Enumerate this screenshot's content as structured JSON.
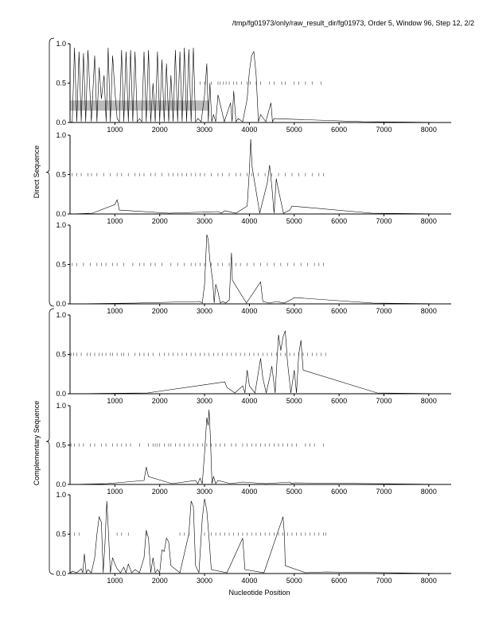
{
  "header": {
    "title": "/tmp/fg01973/only/raw_result_dir/fg01973, Order 5, Window 96, Step 12, 2/2"
  },
  "colors": {
    "trace": "#000000",
    "marker": "#555555",
    "highlight": "#bbbbbb",
    "axis": "#000000"
  },
  "chart_data": {
    "type": "line",
    "xlabel": "Nucleotide Position",
    "xlim": [
      0,
      8500
    ],
    "ylim": [
      0,
      1
    ],
    "x_ticks": [
      "1000",
      "2000",
      "3000",
      "4000",
      "5000",
      "6000",
      "7000",
      "8000"
    ],
    "y_ticks": [
      "0.0",
      "0.5",
      "1.0"
    ],
    "group_labels": [
      "Direct Sequence",
      "Complementary Sequence"
    ],
    "panels": [
      {
        "highlight_region": [
          0,
          3100
        ],
        "highlight_y": [
          0.15,
          0.28
        ],
        "stop_markers": [
          2900,
          3000,
          3150,
          3300,
          3350,
          3420,
          3480,
          3550,
          3650,
          3720,
          3820,
          3950,
          4020,
          4150,
          4250,
          4450,
          4550,
          4720,
          4800,
          5000,
          5100,
          5250,
          5400,
          5600
        ],
        "peaks": [
          [
            100,
            0.95
          ],
          [
            200,
            0.9
          ],
          [
            300,
            0.88
          ],
          [
            400,
            0.92
          ],
          [
            550,
            0.85
          ],
          [
            650,
            0.7
          ],
          [
            700,
            0.3
          ],
          [
            760,
            0.6
          ],
          [
            850,
            0.95
          ],
          [
            950,
            0.85
          ],
          [
            1000,
            0.4
          ],
          [
            1050,
            0.05
          ],
          [
            1150,
            0.92
          ],
          [
            1250,
            0.9
          ],
          [
            1350,
            0.92
          ],
          [
            1450,
            0.9
          ],
          [
            1550,
            0.05
          ],
          [
            1650,
            0.9
          ],
          [
            1750,
            0.92
          ],
          [
            1850,
            0.5
          ],
          [
            1950,
            0.9
          ],
          [
            2050,
            0.8
          ],
          [
            2150,
            0.75
          ],
          [
            2250,
            0.6
          ],
          [
            2350,
            0.92
          ],
          [
            2450,
            0.9
          ],
          [
            2550,
            0.95
          ],
          [
            2650,
            0.93
          ],
          [
            2750,
            0.95
          ],
          [
            2850,
            0.05
          ],
          [
            3000,
            0.35
          ],
          [
            3050,
            0.75
          ],
          [
            3120,
            0.5
          ],
          [
            3200,
            0.1
          ],
          [
            3300,
            0.35
          ],
          [
            3580,
            0.25
          ],
          [
            3650,
            0.4
          ],
          [
            3750,
            0.05
          ],
          [
            3950,
            0.3
          ],
          [
            4000,
            0.65
          ],
          [
            4050,
            0.85
          ],
          [
            4100,
            0.9
          ],
          [
            4150,
            0.6
          ],
          [
            4250,
            0.1
          ],
          [
            4480,
            0.25
          ],
          [
            4550,
            0.05
          ]
        ]
      },
      {
        "stop_markers": [
          50,
          150,
          250,
          400,
          480,
          600,
          750,
          900,
          1050,
          1150,
          1300,
          1450,
          1550,
          1650,
          1800,
          1900,
          2050,
          2200,
          2300,
          2400,
          2500,
          2600,
          2700,
          2800,
          2900,
          3000,
          3150,
          3300,
          3400,
          3550,
          3700,
          3800,
          3950,
          4050,
          4200,
          4350,
          4500,
          4650,
          4800,
          4950,
          5100,
          5250,
          5400,
          5550,
          5650
        ],
        "peaks": [
          [
            1000,
            0.12
          ],
          [
            1050,
            0.18
          ],
          [
            1100,
            0.05
          ],
          [
            3300,
            0.03
          ],
          [
            3450,
            0.04
          ],
          [
            3950,
            0.1
          ],
          [
            4000,
            0.55
          ],
          [
            4030,
            0.95
          ],
          [
            4060,
            0.6
          ],
          [
            4400,
            0.4
          ],
          [
            4450,
            0.62
          ],
          [
            4500,
            0.35
          ],
          [
            4600,
            0.45
          ],
          [
            4620,
            0.38
          ],
          [
            4900,
            0.05
          ],
          [
            4950,
            0.1
          ]
        ]
      },
      {
        "stop_markers": [
          50,
          150,
          300,
          450,
          600,
          700,
          800,
          950,
          1050,
          1200,
          1400,
          1550,
          1650,
          1800,
          1900,
          2050,
          2250,
          2400,
          2550,
          2700,
          2800,
          2900,
          3000,
          3150,
          3300,
          3400,
          3550,
          3700,
          3800,
          3950,
          4100,
          4250,
          4400,
          4550,
          4700,
          4850,
          5000,
          5150,
          5300,
          5450,
          5550,
          5650
        ],
        "peaks": [
          [
            2900,
            0.03
          ],
          [
            3000,
            0.25
          ],
          [
            3050,
            0.88
          ],
          [
            3080,
            0.82
          ],
          [
            3120,
            0.55
          ],
          [
            3180,
            0.3
          ],
          [
            3250,
            0.25
          ],
          [
            3300,
            0.15
          ],
          [
            3400,
            0.03
          ],
          [
            3550,
            0.05
          ],
          [
            3600,
            0.65
          ],
          [
            3620,
            0.3
          ],
          [
            4250,
            0.28
          ],
          [
            4300,
            0.03
          ],
          [
            4600,
            0.03
          ],
          [
            4950,
            0.06
          ],
          [
            5000,
            0.08
          ]
        ]
      },
      {
        "stop_markers": [
          20,
          80,
          150,
          250,
          380,
          450,
          550,
          650,
          720,
          800,
          900,
          950,
          1050,
          1150,
          1200,
          1300,
          1450,
          1550,
          1650,
          1750,
          1850,
          2000,
          2100,
          2200,
          2300,
          2400,
          2500,
          2600,
          2700,
          2800,
          2900,
          3000,
          3100,
          3200,
          3300,
          3400,
          3500,
          3600,
          3700,
          3800,
          3900,
          4000,
          4100,
          4200,
          4300,
          4400,
          4500,
          4600,
          4700,
          4800,
          4900,
          5000,
          5100,
          5200,
          5300,
          5400,
          5500,
          5600,
          5700
        ],
        "peaks": [
          [
            3450,
            0.15
          ],
          [
            3500,
            0.08
          ],
          [
            3850,
            0.1
          ],
          [
            3950,
            0.3
          ],
          [
            4000,
            0.1
          ],
          [
            4250,
            0.45
          ],
          [
            4300,
            0.2
          ],
          [
            4450,
            0.2
          ],
          [
            4500,
            0.35
          ],
          [
            4650,
            0.75
          ],
          [
            4700,
            0.55
          ],
          [
            4750,
            0.72
          ],
          [
            4800,
            0.8
          ],
          [
            4850,
            0.4
          ],
          [
            5000,
            0.3
          ],
          [
            5100,
            0.5
          ],
          [
            5150,
            0.68
          ],
          [
            5200,
            0.3
          ]
        ]
      },
      {
        "stop_markers": [
          20,
          100,
          200,
          300,
          450,
          550,
          700,
          800,
          950,
          1050,
          1150,
          1250,
          1350,
          1550,
          1750,
          1850,
          1900,
          1950,
          2000,
          2100,
          2200,
          2250,
          2350,
          2450,
          2550,
          2650,
          2750,
          2850,
          2950,
          3050,
          3150,
          3250,
          3350,
          3450,
          3600,
          3700,
          3850,
          3950,
          4050,
          4150,
          4250,
          4350,
          4450,
          4550,
          4650,
          4750,
          4850,
          4950,
          5050,
          5250,
          5350,
          5450,
          5650
        ],
        "peaks": [
          [
            1650,
            0.05
          ],
          [
            1700,
            0.22
          ],
          [
            1750,
            0.1
          ],
          [
            2800,
            0.05
          ],
          [
            2900,
            0.08
          ],
          [
            3000,
            0.4
          ],
          [
            3050,
            0.85
          ],
          [
            3080,
            0.75
          ],
          [
            3100,
            0.95
          ],
          [
            3130,
            0.6
          ],
          [
            3200,
            0.1
          ],
          [
            3300,
            0.05
          ],
          [
            3850,
            0.03
          ],
          [
            4900,
            0.03
          ],
          [
            5000,
            0.02
          ]
        ]
      },
      {
        "stop_markers": [
          100,
          200,
          1050,
          1150,
          1300,
          1700,
          2450,
          2550,
          2650,
          3000,
          3150,
          3250,
          3350,
          3450,
          3550,
          3650,
          3750,
          3850,
          3950,
          4050,
          4150,
          4250,
          4350,
          4450,
          4550,
          4650,
          4750,
          4850,
          4950,
          5050,
          5150,
          5250,
          5350,
          5450,
          5550,
          5650,
          5700
        ],
        "peaks": [
          [
            50,
            0.03
          ],
          [
            250,
            0.06
          ],
          [
            320,
            0.25
          ],
          [
            400,
            0.05
          ],
          [
            550,
            0.2
          ],
          [
            600,
            0.5
          ],
          [
            650,
            0.72
          ],
          [
            700,
            0.65
          ],
          [
            780,
            0.4
          ],
          [
            820,
            0.92
          ],
          [
            850,
            0.6
          ],
          [
            950,
            0.2
          ],
          [
            1000,
            0.12
          ],
          [
            1050,
            0.06
          ],
          [
            1200,
            0.08
          ],
          [
            1300,
            0.12
          ],
          [
            1450,
            0.05
          ],
          [
            1650,
            0.2
          ],
          [
            1700,
            0.55
          ],
          [
            1750,
            0.45
          ],
          [
            1850,
            0.2
          ],
          [
            1950,
            0.05
          ],
          [
            2050,
            0.3
          ],
          [
            2100,
            0.28
          ],
          [
            2150,
            0.45
          ],
          [
            2200,
            0.4
          ],
          [
            2250,
            0.1
          ],
          [
            2650,
            0.5
          ],
          [
            2700,
            0.92
          ],
          [
            2750,
            0.85
          ],
          [
            2800,
            0.1
          ],
          [
            2950,
            0.7
          ],
          [
            3000,
            0.95
          ],
          [
            3050,
            0.8
          ],
          [
            3100,
            0.45
          ],
          [
            3150,
            0.05
          ],
          [
            3850,
            0.45
          ],
          [
            3900,
            0.05
          ],
          [
            4750,
            0.72
          ],
          [
            4780,
            0.5
          ],
          [
            4800,
            0.1
          ],
          [
            5700,
            0.02
          ]
        ]
      }
    ]
  }
}
